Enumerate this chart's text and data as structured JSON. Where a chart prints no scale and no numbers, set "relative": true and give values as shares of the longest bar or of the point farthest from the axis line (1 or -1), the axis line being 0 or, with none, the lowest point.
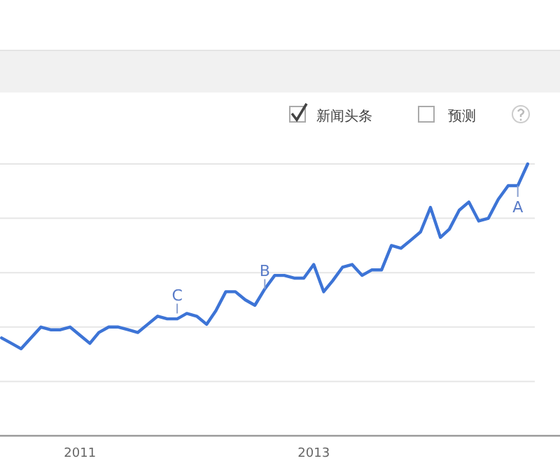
{
  "chart_data": {
    "type": "line",
    "relative": true,
    "grid": "y",
    "color": "#3d74d6",
    "line_style": "solid",
    "marker": "none",
    "x": [
      "2010-05",
      "2010-06",
      "2010-07",
      "2010-08",
      "2010-09",
      "2010-10",
      "2010-11",
      "2010-12",
      "2011-01",
      "2011-02",
      "2011-03",
      "2011-04",
      "2011-05",
      "2011-06",
      "2011-07",
      "2011-08",
      "2011-09",
      "2011-10",
      "2011-11",
      "2011-12",
      "2012-01",
      "2012-02",
      "2012-03",
      "2012-04",
      "2012-05",
      "2012-06",
      "2012-07",
      "2012-08",
      "2012-09",
      "2012-10",
      "2012-11",
      "2012-12",
      "2013-01",
      "2013-02",
      "2013-03",
      "2013-04",
      "2013-05",
      "2013-06",
      "2013-07",
      "2013-08",
      "2013-09",
      "2013-10",
      "2013-11",
      "2013-12",
      "2014-01",
      "2014-02",
      "2014-03",
      "2014-04",
      "2014-05",
      "2014-06",
      "2014-07",
      "2014-08",
      "2014-09",
      "2014-10",
      "2014-11"
    ],
    "values": [
      0.36,
      0.34,
      0.32,
      0.36,
      0.4,
      0.39,
      0.39,
      0.4,
      0.37,
      0.34,
      0.38,
      0.4,
      0.4,
      0.39,
      0.38,
      0.41,
      0.44,
      0.43,
      0.43,
      0.45,
      0.44,
      0.41,
      0.46,
      0.53,
      0.53,
      0.5,
      0.48,
      0.54,
      0.59,
      0.59,
      0.58,
      0.58,
      0.63,
      0.53,
      0.57,
      0.62,
      0.63,
      0.59,
      0.61,
      0.61,
      0.7,
      0.69,
      0.72,
      0.75,
      0.84,
      0.73,
      0.76,
      0.83,
      0.86,
      0.79,
      0.8,
      0.87,
      0.92,
      0.92,
      1.0
    ],
    "xlim": [
      "2010-04-26",
      "2015-02-10"
    ],
    "xticks": [
      {
        "value": "2011",
        "label": "2011"
      },
      {
        "value": "2013",
        "label": "2013"
      }
    ],
    "annotations": [
      {
        "text": "C",
        "x": "2011-11",
        "y": 0.45
      },
      {
        "text": "B",
        "x": "2012-08",
        "y": 0.54
      },
      {
        "text": "A",
        "x": "2014-10",
        "y": 0.92
      },
      "新闻头条",
      "预测"
    ]
  }
}
